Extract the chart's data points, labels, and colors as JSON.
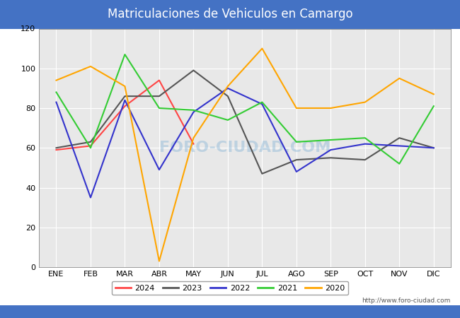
{
  "title": "Matriculaciones de Vehiculos en Camargo",
  "title_bg_color": "#4472C4",
  "title_text_color": "white",
  "months": [
    "ENE",
    "FEB",
    "MAR",
    "ABR",
    "MAY",
    "JUN",
    "JUL",
    "AGO",
    "SEP",
    "OCT",
    "NOV",
    "DIC"
  ],
  "series": {
    "2024": {
      "color": "#FF4444",
      "data": [
        59,
        61,
        81,
        94,
        62,
        null,
        null,
        null,
        null,
        null,
        null,
        null
      ]
    },
    "2023": {
      "color": "#555555",
      "data": [
        60,
        63,
        86,
        86,
        99,
        86,
        47,
        54,
        55,
        54,
        65,
        60
      ]
    },
    "2022": {
      "color": "#3333CC",
      "data": [
        83,
        35,
        84,
        49,
        78,
        90,
        82,
        48,
        59,
        62,
        61,
        60
      ]
    },
    "2021": {
      "color": "#33CC33",
      "data": [
        88,
        60,
        107,
        80,
        79,
        74,
        83,
        63,
        64,
        65,
        52,
        81
      ]
    },
    "2020": {
      "color": "#FFA500",
      "data": [
        94,
        101,
        91,
        3,
        65,
        91,
        110,
        80,
        80,
        83,
        95,
        87
      ]
    }
  },
  "ylim": [
    0,
    120
  ],
  "yticks": [
    0,
    20,
    40,
    60,
    80,
    100,
    120
  ],
  "watermark": "FORO-CIUDAD.COM",
  "url": "http://www.foro-ciudad.com",
  "plot_bg_color": "#E8E8E8",
  "fig_bg_color": "#FFFFFF",
  "title_fontsize": 12,
  "tick_fontsize": 8,
  "legend_fontsize": 8
}
